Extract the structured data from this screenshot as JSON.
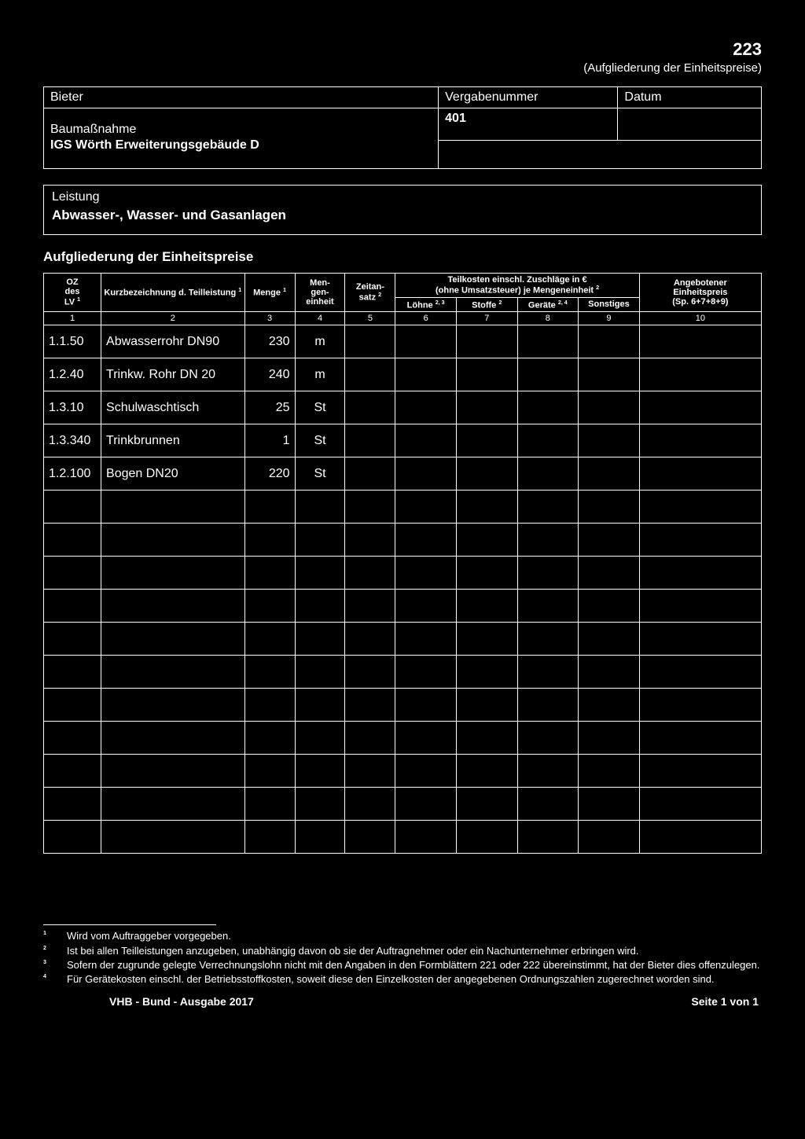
{
  "form": {
    "number": "223",
    "subtitle": "(Aufgliederung der Einheitspreise)"
  },
  "header": {
    "bieter_label": "Bieter",
    "vergabenummer_label": "Vergabenummer",
    "datum_label": "Datum",
    "bieter_value": "",
    "vergabenummer_value": "401",
    "datum_value": "",
    "baumassnahme_label": "Baumaßnahme",
    "baumassnahme_value": "IGS Wörth Erweiterungsgebäude D"
  },
  "leistung": {
    "label": "Leistung",
    "value": "Abwasser-, Wasser- und Gasanlagen"
  },
  "section_title": "Aufgliederung der Einheitspreise",
  "columns": {
    "oz": "OZ\ndes\nLV",
    "oz_sup": "1",
    "kurz": "Kurzbezeichnung d. Teilleistung",
    "kurz_sup": "1",
    "menge": "Menge",
    "menge_sup": "1",
    "mengeneinheit": "Men-\ngen-\neinheit",
    "zeitansatz": "Zeitan-\nsatz",
    "zeitansatz_sup": "2",
    "teilkosten_top": "Teilkosten einschl. Zuschläge in €",
    "teilkosten_sub": "(ohne Umsatzsteuer) je Mengeneinheit",
    "teilkosten_sub_sup": "2",
    "loehne": "Löhne",
    "loehne_sup": "2, 3",
    "stoffe": "Stoffe",
    "stoffe_sup": "2",
    "geraete": "Geräte",
    "geraete_sup": "2, 4",
    "sonstiges": "Sonstiges",
    "angebot": "Angebotener\nEinheitspreis\n(Sp. 6+7+8+9)",
    "nums": [
      "1",
      "2",
      "3",
      "4",
      "5",
      "6",
      "7",
      "8",
      "9",
      "10"
    ]
  },
  "rows": [
    {
      "oz": "1.1.50",
      "desc": "Abwasserrohr DN90",
      "qty": "230",
      "unit": "m"
    },
    {
      "oz": "1.2.40",
      "desc": "Trinkw. Rohr DN 20",
      "qty": "240",
      "unit": "m"
    },
    {
      "oz": "1.3.10",
      "desc": "Schulwaschtisch",
      "qty": "25",
      "unit": "St"
    },
    {
      "oz": "1.3.340",
      "desc": "Trinkbrunnen",
      "qty": "1",
      "unit": "St"
    },
    {
      "oz": "1.2.100",
      "desc": "Bogen DN20",
      "qty": "220",
      "unit": "St"
    },
    {
      "oz": "",
      "desc": "",
      "qty": "",
      "unit": ""
    },
    {
      "oz": "",
      "desc": "",
      "qty": "",
      "unit": ""
    },
    {
      "oz": "",
      "desc": "",
      "qty": "",
      "unit": ""
    },
    {
      "oz": "",
      "desc": "",
      "qty": "",
      "unit": ""
    },
    {
      "oz": "",
      "desc": "",
      "qty": "",
      "unit": ""
    },
    {
      "oz": "",
      "desc": "",
      "qty": "",
      "unit": ""
    },
    {
      "oz": "",
      "desc": "",
      "qty": "",
      "unit": ""
    },
    {
      "oz": "",
      "desc": "",
      "qty": "",
      "unit": ""
    },
    {
      "oz": "",
      "desc": "",
      "qty": "",
      "unit": ""
    },
    {
      "oz": "",
      "desc": "",
      "qty": "",
      "unit": ""
    },
    {
      "oz": "",
      "desc": "",
      "qty": "",
      "unit": ""
    }
  ],
  "footnotes": [
    {
      "n": "1",
      "t": "Wird vom Auftraggeber vorgegeben."
    },
    {
      "n": "2",
      "t": "Ist bei allen Teilleistungen anzugeben, unabhängig davon ob sie der Auftragnehmer oder ein Nachunternehmer erbringen wird."
    },
    {
      "n": "3",
      "t": "Sofern der zugrunde gelegte Verrechnungslohn nicht mit den Angaben in den Formblättern 221 oder 222 übereinstimmt, hat der Bieter dies offenzulegen."
    },
    {
      "n": "4",
      "t": "Für Gerätekosten einschl. der Betriebsstoffkosten, soweit diese den Einzelkosten der angegebenen Ordnungszahlen zugerechnet worden sind."
    }
  ],
  "footer": {
    "left": "VHB - Bund - Ausgabe 2017",
    "right": "Seite 1 von 1"
  }
}
